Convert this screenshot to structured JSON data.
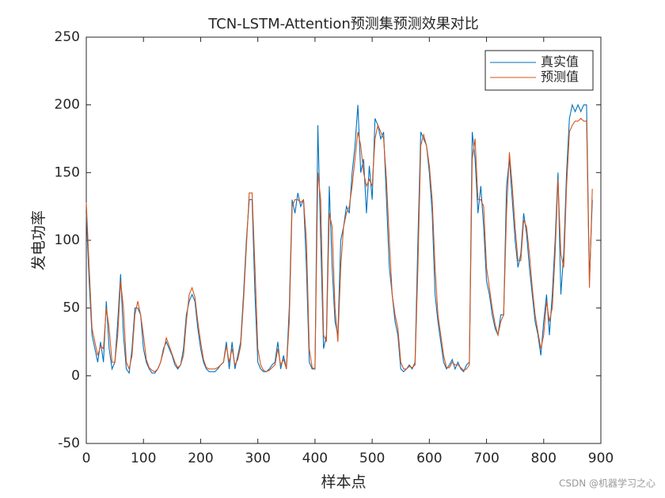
{
  "chart_data": {
    "type": "line",
    "title": "TCN-LSTM-Attention预测集预测效果对比",
    "xlabel": "样本点",
    "ylabel": "发电功率",
    "x": [
      0,
      5,
      10,
      15,
      20,
      25,
      30,
      35,
      40,
      45,
      50,
      55,
      60,
      65,
      70,
      75,
      80,
      85,
      90,
      95,
      100,
      105,
      110,
      115,
      120,
      125,
      130,
      135,
      140,
      145,
      150,
      155,
      160,
      165,
      170,
      175,
      180,
      185,
      190,
      195,
      200,
      205,
      210,
      215,
      220,
      225,
      230,
      235,
      240,
      245,
      250,
      255,
      260,
      265,
      270,
      275,
      280,
      285,
      290,
      295,
      300,
      305,
      310,
      315,
      320,
      325,
      330,
      335,
      340,
      345,
      350,
      355,
      360,
      365,
      370,
      375,
      380,
      385,
      390,
      395,
      400,
      405,
      410,
      415,
      420,
      425,
      430,
      435,
      440,
      445,
      450,
      455,
      460,
      465,
      470,
      475,
      480,
      485,
      490,
      495,
      500,
      505,
      510,
      515,
      520,
      525,
      530,
      535,
      540,
      545,
      550,
      555,
      560,
      565,
      570,
      575,
      580,
      585,
      590,
      595,
      600,
      605,
      610,
      615,
      620,
      625,
      630,
      635,
      640,
      645,
      650,
      655,
      660,
      665,
      670,
      675,
      680,
      685,
      690,
      695,
      700,
      705,
      710,
      715,
      720,
      725,
      730,
      735,
      740,
      745,
      750,
      755,
      760,
      765,
      770,
      775,
      780,
      785,
      790,
      795,
      800,
      805,
      810,
      815,
      820,
      825,
      830,
      835,
      840,
      845,
      850,
      855,
      860,
      865,
      870,
      875,
      880,
      885
    ],
    "series": [
      {
        "name": "真实值",
        "color": "#0072BD",
        "values": [
          120,
          70,
          30,
          20,
          10,
          25,
          10,
          55,
          20,
          5,
          10,
          40,
          75,
          30,
          5,
          2,
          20,
          50,
          50,
          45,
          20,
          10,
          5,
          2,
          2,
          5,
          10,
          20,
          25,
          20,
          15,
          8,
          5,
          8,
          20,
          45,
          55,
          60,
          55,
          35,
          20,
          10,
          5,
          3,
          3,
          3,
          5,
          8,
          10,
          25,
          5,
          25,
          5,
          15,
          25,
          60,
          100,
          130,
          130,
          60,
          10,
          5,
          3,
          3,
          5,
          8,
          10,
          25,
          5,
          15,
          5,
          50,
          130,
          120,
          135,
          125,
          130,
          80,
          10,
          5,
          5,
          185,
          100,
          20,
          30,
          140,
          80,
          40,
          30,
          100,
          110,
          125,
          120,
          150,
          170,
          200,
          150,
          160,
          120,
          155,
          130,
          190,
          185,
          175,
          180,
          130,
          80,
          60,
          40,
          30,
          5,
          3,
          5,
          8,
          5,
          10,
          100,
          180,
          175,
          170,
          150,
          120,
          60,
          40,
          25,
          10,
          5,
          8,
          12,
          5,
          10,
          5,
          3,
          8,
          10,
          180,
          160,
          120,
          140,
          110,
          70,
          60,
          45,
          35,
          30,
          45,
          45,
          140,
          160,
          130,
          100,
          80,
          90,
          120,
          105,
          80,
          60,
          40,
          30,
          15,
          40,
          60,
          30,
          60,
          100,
          150,
          60,
          90,
          150,
          190,
          200,
          195,
          200,
          195,
          200,
          200,
          70,
          130
        ]
      },
      {
        "name": "预测值",
        "color": "#D95319",
        "values": [
          128,
          80,
          35,
          25,
          15,
          22,
          20,
          50,
          35,
          10,
          10,
          30,
          70,
          50,
          10,
          5,
          15,
          45,
          55,
          45,
          30,
          12,
          6,
          4,
          3,
          5,
          10,
          18,
          28,
          22,
          16,
          10,
          6,
          8,
          15,
          40,
          60,
          65,
          58,
          40,
          25,
          12,
          6,
          5,
          5,
          5,
          6,
          8,
          10,
          22,
          10,
          20,
          8,
          12,
          22,
          55,
          95,
          135,
          135,
          80,
          20,
          8,
          4,
          3,
          4,
          6,
          8,
          20,
          8,
          12,
          5,
          40,
          125,
          130,
          130,
          128,
          130,
          100,
          20,
          6,
          5,
          150,
          130,
          30,
          25,
          120,
          110,
          50,
          25,
          80,
          110,
          120,
          125,
          140,
          160,
          180,
          170,
          150,
          140,
          145,
          140,
          175,
          185,
          180,
          175,
          145,
          100,
          60,
          45,
          35,
          10,
          5,
          5,
          7,
          6,
          8,
          80,
          170,
          178,
          170,
          155,
          130,
          80,
          45,
          30,
          15,
          6,
          6,
          10,
          8,
          8,
          6,
          4,
          5,
          8,
          160,
          175,
          130,
          130,
          125,
          80,
          65,
          50,
          38,
          30,
          40,
          45,
          120,
          165,
          140,
          110,
          85,
          85,
          115,
          110,
          90,
          65,
          45,
          32,
          20,
          30,
          55,
          40,
          50,
          90,
          145,
          90,
          80,
          140,
          180,
          185,
          188,
          188,
          190,
          188,
          188,
          65,
          138
        ]
      }
    ],
    "xlim": [
      0,
      900
    ],
    "xticks": [
      0,
      100,
      200,
      300,
      400,
      500,
      600,
      700,
      800,
      900
    ],
    "ylim": [
      -50,
      250
    ],
    "yticks": [
      -50,
      0,
      50,
      100,
      150,
      200,
      250
    ],
    "legend": "northeast"
  },
  "watermark": "CSDN @机器学习之心"
}
